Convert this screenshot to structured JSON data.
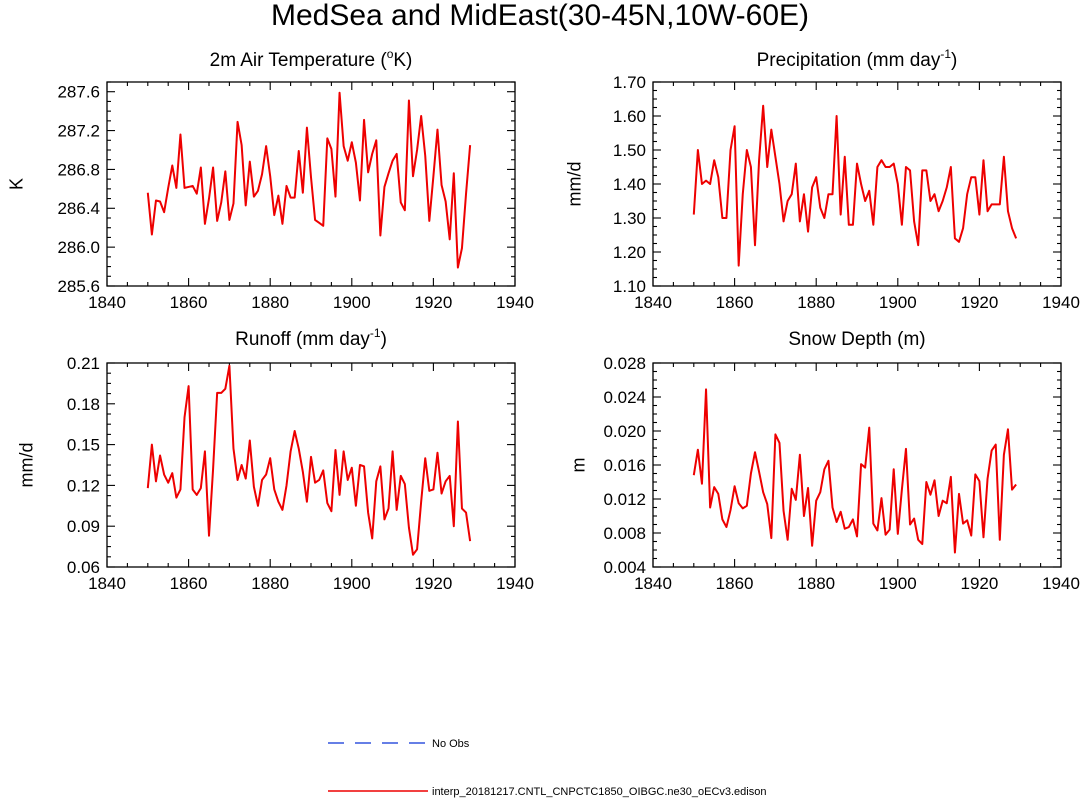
{
  "figure": {
    "title": "MedSea and MidEast(30-45N,10W-60E)"
  },
  "legend": {
    "items": [
      {
        "label": "No Obs",
        "color": "#3355dd",
        "style": "dashed"
      },
      {
        "label": "interp_20181217.CNTL_CNPCTC1850_OIBGC.ne30_oECv3.edison",
        "color": "#ee0000",
        "style": "solid"
      }
    ]
  },
  "colors": {
    "series": "#ee0000",
    "obs": "#3355dd",
    "axis": "#000000"
  },
  "chart_data": [
    {
      "id": "temp",
      "type": "line",
      "title_main": "2m Air Temperature (",
      "title_sup": "o",
      "title_tail": "K)",
      "ylabel": "K",
      "xlim": [
        1840,
        1940
      ],
      "ylim": [
        285.6,
        287.7
      ],
      "xticks": [
        1840,
        1860,
        1880,
        1900,
        1920,
        1940
      ],
      "yticks": [
        285.6,
        286.0,
        286.4,
        286.8,
        287.2,
        287.6
      ],
      "ytick_labels": [
        "285.6",
        "286.0",
        "286.4",
        "286.8",
        "287.2",
        "287.6"
      ],
      "x_start": 1850,
      "series": [
        {
          "name": "interp_20181217.CNTL_CNPCTC1850_OIBGC.ne30_oECv3.edison",
          "values": [
            286.56,
            286.13,
            286.48,
            286.47,
            286.36,
            286.61,
            286.84,
            286.61,
            287.16,
            286.61,
            286.62,
            286.63,
            286.55,
            286.82,
            286.24,
            286.5,
            286.82,
            286.27,
            286.46,
            286.78,
            286.28,
            286.45,
            287.29,
            287.05,
            286.43,
            286.88,
            286.52,
            286.58,
            286.75,
            287.04,
            286.73,
            286.33,
            286.53,
            286.24,
            286.63,
            286.51,
            286.51,
            286.99,
            286.56,
            287.23,
            286.72,
            286.28,
            286.25,
            286.22,
            287.12,
            287.01,
            286.52,
            287.59,
            287.04,
            286.89,
            287.08,
            286.87,
            286.48,
            287.31,
            286.77,
            286.96,
            287.1,
            286.12,
            286.62,
            286.76,
            286.89,
            286.96,
            286.46,
            286.38,
            287.51,
            286.73,
            287.0,
            287.35,
            286.94,
            286.27,
            286.73,
            287.21,
            286.64,
            286.47,
            286.08,
            286.76,
            285.79,
            285.99,
            286.55,
            287.05
          ]
        }
      ]
    },
    {
      "id": "precip",
      "type": "line",
      "title_main": "Precipitation (mm day",
      "title_sup": "-1",
      "title_tail": ")",
      "ylabel": "mm/d",
      "xlim": [
        1840,
        1940
      ],
      "ylim": [
        1.1,
        1.7
      ],
      "xticks": [
        1840,
        1860,
        1880,
        1900,
        1920,
        1940
      ],
      "yticks": [
        1.1,
        1.2,
        1.3,
        1.4,
        1.5,
        1.6,
        1.7
      ],
      "ytick_labels": [
        "1.10",
        "1.20",
        "1.30",
        "1.40",
        "1.50",
        "1.60",
        "1.70"
      ],
      "x_start": 1850,
      "series": [
        {
          "name": "interp_20181217.CNTL_CNPCTC1850_OIBGC.ne30_oECv3.edison",
          "values": [
            1.31,
            1.5,
            1.4,
            1.41,
            1.4,
            1.47,
            1.42,
            1.3,
            1.3,
            1.5,
            1.57,
            1.16,
            1.37,
            1.5,
            1.45,
            1.22,
            1.47,
            1.63,
            1.45,
            1.56,
            1.48,
            1.4,
            1.29,
            1.35,
            1.37,
            1.46,
            1.29,
            1.37,
            1.26,
            1.39,
            1.42,
            1.33,
            1.3,
            1.37,
            1.37,
            1.6,
            1.31,
            1.48,
            1.28,
            1.28,
            1.46,
            1.4,
            1.35,
            1.38,
            1.28,
            1.45,
            1.47,
            1.45,
            1.45,
            1.46,
            1.4,
            1.28,
            1.45,
            1.44,
            1.29,
            1.22,
            1.44,
            1.44,
            1.35,
            1.37,
            1.32,
            1.35,
            1.39,
            1.45,
            1.24,
            1.23,
            1.27,
            1.37,
            1.42,
            1.42,
            1.31,
            1.47,
            1.32,
            1.34,
            1.34,
            1.34,
            1.48,
            1.32,
            1.27,
            1.24
          ]
        }
      ]
    },
    {
      "id": "runoff",
      "type": "line",
      "title_main": "Runoff (mm day",
      "title_sup": "-1",
      "title_tail": ")",
      "ylabel": "mm/d",
      "xlim": [
        1840,
        1940
      ],
      "ylim": [
        0.06,
        0.21
      ],
      "xticks": [
        1840,
        1860,
        1880,
        1900,
        1920,
        1940
      ],
      "yticks": [
        0.06,
        0.09,
        0.12,
        0.15,
        0.18,
        0.21
      ],
      "ytick_labels": [
        "0.06",
        "0.09",
        "0.12",
        "0.15",
        "0.18",
        "0.21"
      ],
      "x_start": 1850,
      "series": [
        {
          "name": "interp_20181217.CNTL_CNPCTC1850_OIBGC.ne30_oECv3.edison",
          "values": [
            0.118,
            0.15,
            0.123,
            0.142,
            0.128,
            0.122,
            0.129,
            0.111,
            0.117,
            0.17,
            0.193,
            0.117,
            0.113,
            0.118,
            0.145,
            0.083,
            0.132,
            0.188,
            0.188,
            0.191,
            0.208,
            0.147,
            0.124,
            0.135,
            0.125,
            0.153,
            0.119,
            0.105,
            0.124,
            0.128,
            0.14,
            0.117,
            0.108,
            0.102,
            0.12,
            0.145,
            0.16,
            0.147,
            0.13,
            0.108,
            0.141,
            0.122,
            0.124,
            0.131,
            0.107,
            0.101,
            0.146,
            0.113,
            0.145,
            0.124,
            0.133,
            0.105,
            0.135,
            0.134,
            0.1,
            0.081,
            0.123,
            0.134,
            0.095,
            0.103,
            0.145,
            0.102,
            0.127,
            0.121,
            0.089,
            0.069,
            0.073,
            0.108,
            0.14,
            0.116,
            0.117,
            0.144,
            0.114,
            0.123,
            0.127,
            0.09,
            0.167,
            0.103,
            0.1,
            0.079
          ]
        }
      ]
    },
    {
      "id": "snow",
      "type": "line",
      "title_main": "Snow Depth (m)",
      "title_sup": "",
      "title_tail": "",
      "ylabel": "m",
      "xlim": [
        1840,
        1940
      ],
      "ylim": [
        0.004,
        0.028
      ],
      "xticks": [
        1840,
        1860,
        1880,
        1900,
        1920,
        1940
      ],
      "yticks": [
        0.004,
        0.008,
        0.012,
        0.016,
        0.02,
        0.024,
        0.028
      ],
      "ytick_labels": [
        "0.004",
        "0.008",
        "0.012",
        "0.016",
        "0.020",
        "0.024",
        "0.028"
      ],
      "x_start": 1850,
      "series": [
        {
          "name": "interp_20181217.CNTL_CNPCTC1850_OIBGC.ne30_oECv3.edison",
          "values": [
            0.0148,
            0.0178,
            0.0138,
            0.0249,
            0.011,
            0.0134,
            0.0126,
            0.0096,
            0.0087,
            0.0107,
            0.0135,
            0.0115,
            0.0109,
            0.0112,
            0.015,
            0.0175,
            0.0152,
            0.0128,
            0.0114,
            0.0074,
            0.0196,
            0.0186,
            0.0106,
            0.0072,
            0.0132,
            0.0119,
            0.0172,
            0.01,
            0.0133,
            0.0065,
            0.0118,
            0.0128,
            0.0155,
            0.0165,
            0.011,
            0.0093,
            0.0105,
            0.0085,
            0.0087,
            0.0096,
            0.0076,
            0.0161,
            0.0157,
            0.0204,
            0.0091,
            0.0083,
            0.0121,
            0.0078,
            0.0084,
            0.0155,
            0.0079,
            0.0131,
            0.0179,
            0.009,
            0.0097,
            0.0072,
            0.0067,
            0.014,
            0.0125,
            0.0142,
            0.01,
            0.0118,
            0.0115,
            0.0146,
            0.0057,
            0.0126,
            0.0091,
            0.0095,
            0.0077,
            0.0149,
            0.0141,
            0.0075,
            0.0144,
            0.0177,
            0.0184,
            0.0072,
            0.0172,
            0.0202,
            0.0131,
            0.0137
          ]
        }
      ]
    }
  ]
}
